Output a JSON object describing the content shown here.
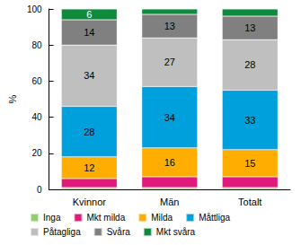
{
  "chart_data": {
    "type": "bar",
    "stacked": true,
    "data_labels": true,
    "y_label": "%",
    "categories": [
      "Kvinnor",
      "Män",
      "Totalt"
    ],
    "ylim": [
      0,
      100
    ],
    "yticks": [
      0,
      20,
      40,
      60,
      80,
      100
    ],
    "grid": false,
    "legend": "bottom",
    "series": [
      {
        "name": "Inga",
        "color": "#8fd16e",
        "values": [
          1,
          1,
          1
        ]
      },
      {
        "name": "Mkt milda",
        "color": "#e0197d",
        "values": [
          5,
          6,
          6
        ]
      },
      {
        "name": "Milda",
        "color": "#ffae00",
        "values": [
          12,
          16,
          15
        ],
        "value_labels": [
          "12",
          "16",
          "15"
        ]
      },
      {
        "name": "Måttliga",
        "color": "#00a0dc",
        "values": [
          28,
          34,
          33
        ],
        "value_labels": [
          "28",
          "34",
          "33"
        ]
      },
      {
        "name": "Påtagliga",
        "color": "#bfbfbf",
        "values": [
          34,
          27,
          28
        ],
        "value_labels": [
          "34",
          "27",
          "28"
        ]
      },
      {
        "name": "Svåra",
        "color": "#808080",
        "values": [
          14,
          13,
          13
        ],
        "value_labels": [
          "14",
          "13",
          "13"
        ]
      },
      {
        "name": "Mkt svåra",
        "color": "#0f8a3c",
        "values": [
          6,
          3,
          4
        ],
        "value_labels": [
          "6",
          null,
          null
        ]
      }
    ]
  }
}
